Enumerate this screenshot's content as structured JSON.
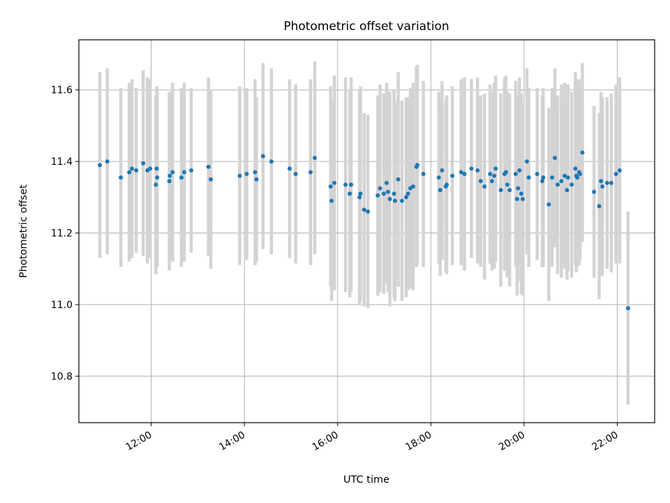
{
  "chart_data": {
    "type": "scatter",
    "title": "Photometric offset variation",
    "xlabel": "UTC time",
    "ylabel": "Photometric offset",
    "x_unit": "hours (UTC)",
    "xlim": [
      10.45,
      22.8
    ],
    "ylim": [
      10.67,
      11.74
    ],
    "x_ticks": [
      12,
      14,
      16,
      18,
      20,
      22
    ],
    "x_tick_labels": [
      "12:00",
      "14:00",
      "16:00",
      "18:00",
      "20:00",
      "22:00"
    ],
    "y_ticks": [
      10.8,
      11.0,
      11.2,
      11.4,
      11.6
    ],
    "y_tick_labels": [
      "10.8",
      "11.0",
      "11.2",
      "11.4",
      "11.6"
    ],
    "grid": true,
    "point_color": "#1f77b4",
    "errorbar_color": "#d3d3d3",
    "series": [
      {
        "x": [
          10.9,
          11.06,
          11.35,
          11.53,
          11.59,
          11.68,
          11.83,
          11.92,
          11.98,
          12.1,
          12.12,
          12.13,
          12.39,
          12.4,
          12.46,
          12.65,
          12.71,
          12.86,
          13.23,
          13.28,
          13.9,
          14.05,
          14.23,
          14.26,
          14.4,
          14.58,
          14.97,
          15.1,
          15.42,
          15.51,
          15.85,
          15.87,
          15.93,
          16.17,
          16.26,
          16.29,
          16.47,
          16.49,
          16.57,
          16.65,
          16.86,
          16.91,
          16.99,
          17.05,
          17.08,
          17.12,
          17.21,
          17.23,
          17.3,
          17.38,
          17.47,
          17.51,
          17.56,
          17.62,
          17.69,
          17.71,
          17.84,
          18.17,
          18.2,
          18.24,
          18.32,
          18.34,
          18.46,
          18.65,
          18.72,
          18.87,
          19.0,
          19.07,
          19.15,
          19.27,
          19.31,
          19.36,
          19.39,
          19.5,
          19.58,
          19.61,
          19.64,
          19.69,
          19.82,
          19.85,
          19.87,
          19.9,
          19.94,
          19.97,
          20.06,
          20.1,
          20.28,
          20.39,
          20.41,
          20.53,
          20.6,
          20.66,
          20.72,
          20.8,
          20.87,
          20.92,
          20.94,
          21.02,
          21.1,
          21.12,
          21.14,
          21.18,
          21.2,
          21.25,
          21.5,
          21.61,
          21.65,
          21.68,
          21.78,
          21.87,
          21.97,
          22.05,
          22.23
        ],
        "y": [
          11.39,
          11.4,
          11.355,
          11.37,
          11.38,
          11.375,
          11.395,
          11.375,
          11.38,
          11.335,
          11.38,
          11.355,
          11.345,
          11.36,
          11.37,
          11.355,
          11.37,
          11.375,
          11.385,
          11.35,
          11.36,
          11.365,
          11.37,
          11.35,
          11.415,
          11.4,
          11.38,
          11.365,
          11.37,
          11.41,
          11.33,
          11.29,
          11.34,
          11.335,
          11.31,
          11.335,
          11.3,
          11.31,
          11.265,
          11.26,
          11.305,
          11.325,
          11.31,
          11.34,
          11.315,
          11.295,
          11.31,
          11.29,
          11.35,
          11.29,
          11.3,
          11.31,
          11.325,
          11.33,
          11.385,
          11.39,
          11.365,
          11.355,
          11.32,
          11.375,
          11.33,
          11.335,
          11.36,
          11.37,
          11.365,
          11.38,
          11.375,
          11.345,
          11.33,
          11.365,
          11.345,
          11.36,
          11.38,
          11.32,
          11.365,
          11.37,
          11.335,
          11.32,
          11.365,
          11.295,
          11.325,
          11.375,
          11.31,
          11.295,
          11.4,
          11.355,
          11.365,
          11.345,
          11.355,
          11.28,
          11.355,
          11.41,
          11.335,
          11.345,
          11.36,
          11.32,
          11.355,
          11.335,
          11.38,
          11.36,
          11.355,
          11.37,
          11.365,
          11.425,
          11.315,
          11.275,
          11.345,
          11.33,
          11.34,
          11.34,
          11.365,
          11.375,
          10.99
        ],
        "yerr": [
          0.26,
          0.26,
          0.25,
          0.25,
          0.25,
          0.23,
          0.26,
          0.26,
          0.25,
          0.25,
          0.23,
          0.25,
          0.25,
          0.23,
          0.25,
          0.25,
          0.25,
          0.23,
          0.25,
          0.25,
          0.25,
          0.24,
          0.26,
          0.23,
          0.26,
          0.26,
          0.25,
          0.25,
          0.26,
          0.27,
          0.28,
          0.28,
          0.3,
          0.3,
          0.29,
          0.3,
          0.3,
          0.3,
          0.27,
          0.27,
          0.28,
          0.29,
          0.28,
          0.28,
          0.28,
          0.3,
          0.29,
          0.28,
          0.3,
          0.28,
          0.28,
          0.27,
          0.28,
          0.29,
          0.28,
          0.28,
          0.26,
          0.24,
          0.24,
          0.25,
          0.24,
          0.25,
          0.25,
          0.26,
          0.27,
          0.25,
          0.26,
          0.24,
          0.26,
          0.25,
          0.25,
          0.26,
          0.26,
          0.27,
          0.27,
          0.27,
          0.26,
          0.27,
          0.26,
          0.27,
          0.26,
          0.26,
          0.28,
          0.27,
          0.26,
          0.25,
          0.24,
          0.24,
          0.25,
          0.27,
          0.25,
          0.25,
          0.25,
          0.27,
          0.26,
          0.25,
          0.26,
          0.26,
          0.27,
          0.27,
          0.25,
          0.26,
          0.24,
          0.25,
          0.24,
          0.26,
          0.25,
          0.25,
          0.24,
          0.25,
          0.25,
          0.26,
          0.27
        ]
      }
    ]
  }
}
